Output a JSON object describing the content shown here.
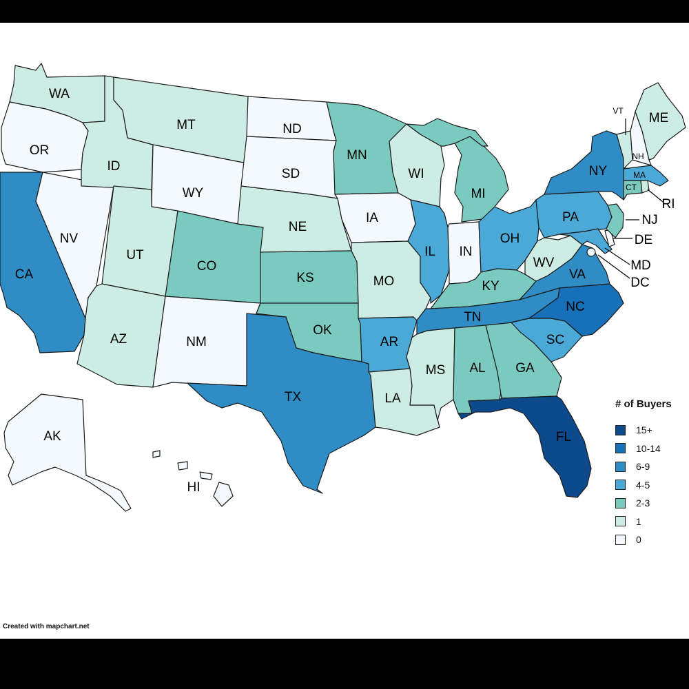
{
  "credit": "Created with mapchart.net",
  "legend": {
    "title": "# of Buyers",
    "items": [
      {
        "label": "15+",
        "color": "#0d4a8c"
      },
      {
        "label": "10-14",
        "color": "#1770b8"
      },
      {
        "label": "6-9",
        "color": "#2f8cc4"
      },
      {
        "label": "4-5",
        "color": "#4aa9d6"
      },
      {
        "label": "2-3",
        "color": "#7bcabf"
      },
      {
        "label": "1",
        "color": "#cdece3"
      },
      {
        "label": "0",
        "color": "#f4f9fd"
      }
    ]
  },
  "chart_data": {
    "type": "choropleth",
    "legend_title": "# of Buyers",
    "legend_placement": "right",
    "states": [
      {
        "code": "WA",
        "bin": "1"
      },
      {
        "code": "OR",
        "bin": "0"
      },
      {
        "code": "CA",
        "bin": "6-9"
      },
      {
        "code": "NV",
        "bin": "0"
      },
      {
        "code": "ID",
        "bin": "1"
      },
      {
        "code": "MT",
        "bin": "1"
      },
      {
        "code": "WY",
        "bin": "0"
      },
      {
        "code": "UT",
        "bin": "1"
      },
      {
        "code": "AZ",
        "bin": "1"
      },
      {
        "code": "CO",
        "bin": "2-3"
      },
      {
        "code": "NM",
        "bin": "0"
      },
      {
        "code": "ND",
        "bin": "0"
      },
      {
        "code": "SD",
        "bin": "0"
      },
      {
        "code": "NE",
        "bin": "1"
      },
      {
        "code": "KS",
        "bin": "2-3"
      },
      {
        "code": "OK",
        "bin": "2-3"
      },
      {
        "code": "TX",
        "bin": "6-9"
      },
      {
        "code": "MN",
        "bin": "2-3"
      },
      {
        "code": "IA",
        "bin": "0"
      },
      {
        "code": "MO",
        "bin": "1"
      },
      {
        "code": "AR",
        "bin": "4-5"
      },
      {
        "code": "LA",
        "bin": "1"
      },
      {
        "code": "WI",
        "bin": "1"
      },
      {
        "code": "IL",
        "bin": "4-5"
      },
      {
        "code": "MI",
        "bin": "2-3"
      },
      {
        "code": "IN",
        "bin": "0"
      },
      {
        "code": "OH",
        "bin": "4-5"
      },
      {
        "code": "KY",
        "bin": "2-3"
      },
      {
        "code": "TN",
        "bin": "6-9"
      },
      {
        "code": "MS",
        "bin": "1"
      },
      {
        "code": "AL",
        "bin": "2-3"
      },
      {
        "code": "GA",
        "bin": "2-3"
      },
      {
        "code": "FL",
        "bin": "15+"
      },
      {
        "code": "SC",
        "bin": "4-5"
      },
      {
        "code": "NC",
        "bin": "10-14"
      },
      {
        "code": "VA",
        "bin": "6-9"
      },
      {
        "code": "WV",
        "bin": "1"
      },
      {
        "code": "PA",
        "bin": "4-5"
      },
      {
        "code": "NY",
        "bin": "6-9"
      },
      {
        "code": "VT",
        "bin": "1"
      },
      {
        "code": "NH",
        "bin": "0"
      },
      {
        "code": "ME",
        "bin": "1"
      },
      {
        "code": "MA",
        "bin": "4-5"
      },
      {
        "code": "RI",
        "bin": "1"
      },
      {
        "code": "CT",
        "bin": "2-3"
      },
      {
        "code": "NJ",
        "bin": "2-3"
      },
      {
        "code": "DE",
        "bin": "0"
      },
      {
        "code": "MD",
        "bin": "4-5"
      },
      {
        "code": "DC",
        "bin": "0"
      },
      {
        "code": "AK",
        "bin": "0"
      },
      {
        "code": "HI",
        "bin": "0"
      }
    ]
  }
}
